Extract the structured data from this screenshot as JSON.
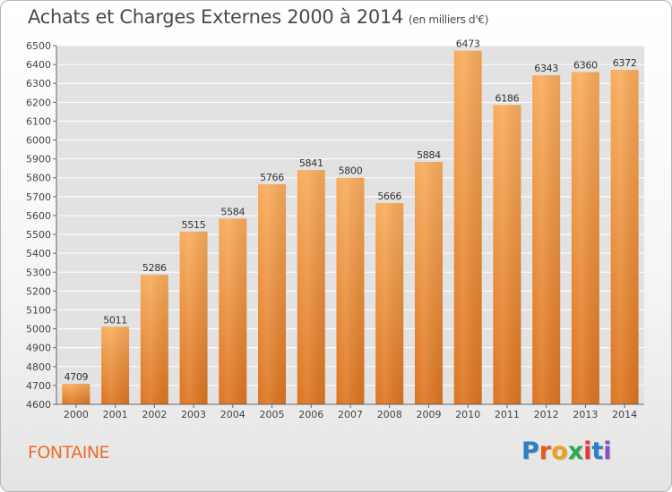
{
  "page": {
    "title": "Achats et Charges Externes 2000 à 2014",
    "subtitle": "(en milliers d'€)",
    "commune": "FONTAINE",
    "logo": {
      "letters": [
        {
          "char": "P",
          "color": "#2b7fc4"
        },
        {
          "char": "r",
          "color": "#e85b1c"
        },
        {
          "char": "o",
          "color": "#f0a020"
        },
        {
          "char": "x",
          "color": "#2fa84f"
        },
        {
          "char": "i",
          "color": "#e03b3b"
        },
        {
          "char": "t",
          "color": "#2b7fc4"
        },
        {
          "char": "i",
          "color": "#8a4fc0"
        }
      ]
    }
  },
  "chart_data": {
    "type": "bar",
    "title": "Achats et Charges Externes 2000 à 2014",
    "subtitle": "(en milliers d'€)",
    "categories": [
      "2000",
      "2001",
      "2002",
      "2003",
      "2004",
      "2005",
      "2006",
      "2007",
      "2008",
      "2009",
      "2010",
      "2011",
      "2012",
      "2013",
      "2014"
    ],
    "values": [
      4709,
      5011,
      5286,
      5515,
      5584,
      5766,
      5841,
      5800,
      5666,
      5884,
      6473,
      6186,
      6343,
      6360,
      6372
    ],
    "ylim": [
      4600,
      6500
    ],
    "yticks": [
      4600,
      4700,
      4800,
      4900,
      5000,
      5100,
      5200,
      5300,
      5400,
      5500,
      5600,
      5700,
      5800,
      5900,
      6000,
      6100,
      6200,
      6300,
      6400,
      6500
    ],
    "grid": true,
    "colors": {
      "bar_light": "#f7a654",
      "bar_dark": "#e07820",
      "grid": "#ffffff",
      "plot_bg": "#e2e2e2"
    }
  }
}
